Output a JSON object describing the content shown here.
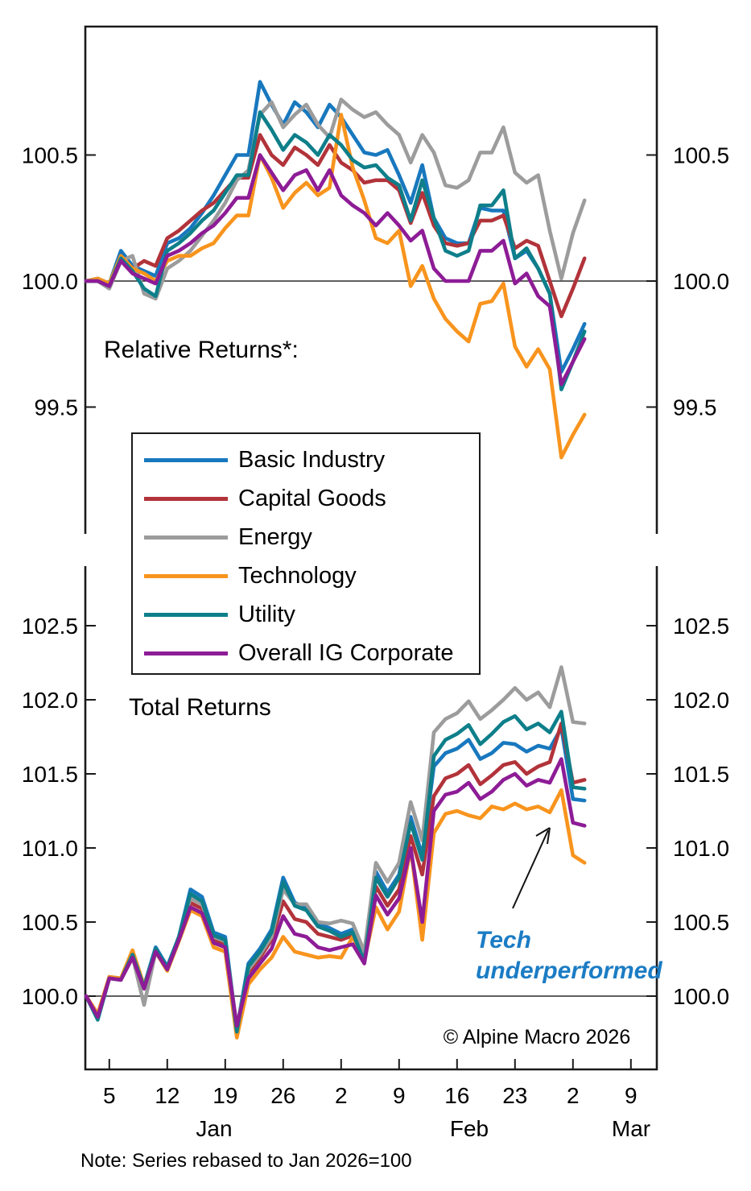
{
  "labels": {
    "relative_returns": "Relative Returns*:",
    "total_returns": "Total Returns",
    "copyright": "© Alpine Macro 2026",
    "note": "Note: Series rebased to Jan 2026=100"
  },
  "annotation": {
    "line1": "Tech",
    "line2": "underperformed",
    "color": "#1b7cc4"
  },
  "legend": {
    "items": [
      {
        "label": "Basic Industry",
        "color": "#1878be"
      },
      {
        "label": "Capital Goods",
        "color": "#b2333a"
      },
      {
        "label": "Energy",
        "color": "#9c9c9c"
      },
      {
        "label": "Technology",
        "color": "#f8941d"
      },
      {
        "label": "Utility",
        "color": "#0e7f8a"
      },
      {
        "label": "Overall IG Corporate",
        "color": "#8d1c96"
      }
    ]
  },
  "x_axis": {
    "tick_labels": [
      "5",
      "12",
      "19",
      "26",
      "2",
      "9",
      "16",
      "23",
      "2",
      "9"
    ],
    "month_labels": [
      "Jan",
      "Feb",
      "Mar"
    ]
  },
  "chart_data": [
    {
      "type": "line",
      "panel": "top",
      "title": "Relative Returns*:",
      "ylim": [
        99.0,
        101.0
      ],
      "yticks": [
        100.5,
        100.0,
        99.5
      ],
      "ytick_labels": [
        "100.5",
        "100.0",
        "99.5"
      ],
      "baseline": 100.0,
      "grid": false,
      "x": [
        "Jan 1",
        "Jan 2",
        "Jan 5",
        "Jan 6",
        "Jan 7",
        "Jan 8",
        "Jan 9",
        "Jan 12",
        "Jan 13",
        "Jan 14",
        "Jan 15",
        "Jan 16",
        "Jan 19",
        "Jan 20",
        "Jan 21",
        "Jan 22",
        "Jan 23",
        "Jan 26",
        "Jan 27",
        "Jan 28",
        "Jan 29",
        "Jan 30",
        "Feb 2",
        "Feb 3",
        "Feb 4",
        "Feb 5",
        "Feb 6",
        "Feb 9",
        "Feb 10",
        "Feb 11",
        "Feb 12",
        "Feb 13",
        "Feb 16",
        "Feb 17",
        "Feb 18",
        "Feb 19",
        "Feb 20",
        "Feb 23",
        "Feb 24",
        "Feb 25",
        "Feb 26",
        "Feb 27",
        "Mar 2",
        "Mar 3"
      ],
      "series": [
        {
          "name": "Basic Industry",
          "color": "#1878be",
          "values": [
            100.0,
            100.01,
            99.99,
            100.12,
            100.06,
            100.04,
            100.02,
            100.15,
            100.17,
            100.21,
            100.27,
            100.34,
            100.42,
            100.5,
            100.5,
            100.79,
            100.7,
            100.62,
            100.71,
            100.67,
            100.61,
            100.7,
            100.65,
            100.58,
            100.51,
            100.5,
            100.52,
            100.42,
            100.31,
            100.46,
            100.25,
            100.17,
            100.15,
            100.15,
            100.29,
            100.28,
            100.28,
            100.09,
            100.12,
            100.05,
            99.95,
            99.64,
            99.73,
            99.83
          ]
        },
        {
          "name": "Capital Goods",
          "color": "#b2333a",
          "values": [
            100.0,
            100.0,
            99.98,
            100.1,
            100.05,
            100.08,
            100.06,
            100.17,
            100.2,
            100.24,
            100.28,
            100.31,
            100.36,
            100.41,
            100.41,
            100.58,
            100.5,
            100.46,
            100.53,
            100.5,
            100.46,
            100.54,
            100.47,
            100.44,
            100.39,
            100.4,
            100.4,
            100.36,
            100.23,
            100.35,
            100.22,
            100.15,
            100.14,
            100.15,
            100.24,
            100.24,
            100.26,
            100.13,
            100.16,
            100.14,
            100.0,
            99.86,
            99.97,
            100.09
          ]
        },
        {
          "name": "Energy",
          "color": "#9c9c9c",
          "values": [
            100.0,
            100.0,
            99.97,
            100.08,
            100.1,
            99.95,
            99.93,
            100.05,
            100.08,
            100.12,
            100.18,
            100.24,
            100.31,
            100.4,
            100.44,
            100.66,
            100.71,
            100.61,
            100.66,
            100.7,
            100.62,
            100.57,
            100.72,
            100.68,
            100.65,
            100.67,
            100.62,
            100.58,
            100.47,
            100.58,
            100.51,
            100.38,
            100.37,
            100.4,
            100.51,
            100.51,
            100.61,
            100.43,
            100.39,
            100.42,
            100.2,
            100.01,
            100.19,
            100.32
          ]
        },
        {
          "name": "Technology",
          "color": "#f8941d",
          "values": [
            100.0,
            100.01,
            99.99,
            100.1,
            100.05,
            100.03,
            100.0,
            100.08,
            100.1,
            100.1,
            100.13,
            100.15,
            100.21,
            100.26,
            100.26,
            100.5,
            100.41,
            100.29,
            100.35,
            100.39,
            100.34,
            100.37,
            100.66,
            100.45,
            100.32,
            100.17,
            100.15,
            100.2,
            99.98,
            100.06,
            99.93,
            99.85,
            99.8,
            99.76,
            99.91,
            99.92,
            99.99,
            99.74,
            99.66,
            99.73,
            99.65,
            99.3,
            99.39,
            99.47
          ]
        },
        {
          "name": "Utility",
          "color": "#0e7f8a",
          "values": [
            100.0,
            100.0,
            99.98,
            100.09,
            100.04,
            99.97,
            99.94,
            100.12,
            100.15,
            100.19,
            100.24,
            100.28,
            100.35,
            100.42,
            100.42,
            100.67,
            100.6,
            100.52,
            100.58,
            100.55,
            100.5,
            100.58,
            100.54,
            100.48,
            100.45,
            100.46,
            100.41,
            100.38,
            100.24,
            100.4,
            100.25,
            100.12,
            100.1,
            100.12,
            100.3,
            100.3,
            100.36,
            100.09,
            100.13,
            100.05,
            99.95,
            99.57,
            99.68,
            99.8
          ]
        },
        {
          "name": "Overall IG Corporate",
          "color": "#8d1c96",
          "values": [
            100.0,
            100.0,
            99.98,
            100.08,
            100.03,
            100.01,
            99.99,
            100.1,
            100.12,
            100.15,
            100.19,
            100.22,
            100.27,
            100.33,
            100.33,
            100.5,
            100.43,
            100.36,
            100.42,
            100.44,
            100.36,
            100.44,
            100.34,
            100.3,
            100.27,
            100.22,
            100.27,
            100.22,
            100.16,
            100.2,
            100.05,
            100.0,
            100.0,
            100.0,
            100.12,
            100.12,
            100.16,
            99.99,
            100.03,
            99.94,
            99.9,
            99.59,
            99.68,
            99.77
          ]
        }
      ]
    },
    {
      "type": "line",
      "panel": "bottom",
      "title": "Total Returns",
      "ylim": [
        99.5,
        102.9
      ],
      "yticks": [
        102.5,
        102.0,
        101.5,
        101.0,
        100.5,
        100.0
      ],
      "ytick_labels": [
        "102.5",
        "102.0",
        "101.5",
        "101.0",
        "100.5",
        "100.0"
      ],
      "baseline": 100.0,
      "grid": false,
      "x": [
        "Jan 1",
        "Jan 2",
        "Jan 5",
        "Jan 6",
        "Jan 7",
        "Jan 8",
        "Jan 9",
        "Jan 12",
        "Jan 13",
        "Jan 14",
        "Jan 15",
        "Jan 16",
        "Jan 19",
        "Jan 20",
        "Jan 21",
        "Jan 22",
        "Jan 23",
        "Jan 26",
        "Jan 27",
        "Jan 28",
        "Jan 29",
        "Jan 30",
        "Feb 2",
        "Feb 3",
        "Feb 4",
        "Feb 5",
        "Feb 6",
        "Feb 9",
        "Feb 10",
        "Feb 11",
        "Feb 12",
        "Feb 13",
        "Feb 16",
        "Feb 17",
        "Feb 18",
        "Feb 19",
        "Feb 20",
        "Feb 23",
        "Feb 24",
        "Feb 25",
        "Feb 26",
        "Feb 27",
        "Mar 2",
        "Mar 3"
      ],
      "series": [
        {
          "name": "Basic Industry",
          "color": "#1878be",
          "values": [
            100.0,
            99.87,
            100.13,
            100.12,
            100.29,
            100.07,
            100.33,
            100.2,
            100.4,
            100.72,
            100.67,
            100.43,
            100.4,
            99.78,
            100.22,
            100.32,
            100.45,
            100.8,
            100.63,
            100.6,
            100.49,
            100.46,
            100.42,
            100.45,
            100.24,
            100.84,
            100.7,
            100.82,
            101.21,
            100.95,
            101.55,
            101.64,
            101.67,
            101.73,
            101.6,
            101.64,
            101.71,
            101.7,
            101.65,
            101.69,
            101.67,
            101.81,
            101.33,
            101.32
          ]
        },
        {
          "name": "Capital Goods",
          "color": "#b2333a",
          "values": [
            100.0,
            99.87,
            100.12,
            100.11,
            100.27,
            100.06,
            100.31,
            100.19,
            100.39,
            100.63,
            100.59,
            100.38,
            100.35,
            99.78,
            100.16,
            100.26,
            100.38,
            100.64,
            100.52,
            100.5,
            100.42,
            100.4,
            100.38,
            100.41,
            100.23,
            100.74,
            100.61,
            100.72,
            101.08,
            100.82,
            101.35,
            101.47,
            101.5,
            101.56,
            101.43,
            101.49,
            101.56,
            101.58,
            101.5,
            101.55,
            101.58,
            101.84,
            101.44,
            101.46
          ]
        },
        {
          "name": "Energy",
          "color": "#9c9c9c",
          "values": [
            100.0,
            99.88,
            100.12,
            100.11,
            100.27,
            99.94,
            100.3,
            100.18,
            100.4,
            100.66,
            100.62,
            100.4,
            100.37,
            99.79,
            100.18,
            100.28,
            100.4,
            100.72,
            100.62,
            100.62,
            100.5,
            100.49,
            100.51,
            100.49,
            100.3,
            100.9,
            100.77,
            100.9,
            101.31,
            101.05,
            101.78,
            101.87,
            101.91,
            101.99,
            101.87,
            101.93,
            102.0,
            102.08,
            102.0,
            102.05,
            101.95,
            102.22,
            101.85,
            101.84
          ]
        },
        {
          "name": "Technology",
          "color": "#f8941d",
          "values": [
            100.0,
            99.88,
            100.13,
            100.12,
            100.31,
            100.07,
            100.3,
            100.17,
            100.37,
            100.58,
            100.54,
            100.33,
            100.3,
            99.72,
            100.08,
            100.18,
            100.26,
            100.4,
            100.3,
            100.28,
            100.26,
            100.27,
            100.26,
            100.4,
            100.24,
            100.6,
            100.45,
            100.57,
            101.0,
            100.38,
            101.1,
            101.23,
            101.25,
            101.22,
            101.2,
            101.28,
            101.26,
            101.3,
            101.26,
            101.28,
            101.24,
            101.39,
            100.95,
            100.9
          ]
        },
        {
          "name": "Utility",
          "color": "#0e7f8a",
          "values": [
            100.0,
            99.84,
            100.12,
            100.11,
            100.28,
            100.06,
            100.32,
            100.19,
            100.4,
            100.69,
            100.64,
            100.41,
            100.38,
            99.76,
            100.2,
            100.3,
            100.43,
            100.77,
            100.61,
            100.58,
            100.47,
            100.44,
            100.4,
            100.43,
            100.23,
            100.8,
            100.67,
            100.8,
            101.17,
            100.92,
            101.62,
            101.73,
            101.77,
            101.83,
            101.7,
            101.77,
            101.85,
            101.89,
            101.8,
            101.84,
            101.78,
            101.92,
            101.41,
            101.4
          ]
        },
        {
          "name": "Overall IG Corporate",
          "color": "#8d1c96",
          "values": [
            100.0,
            99.86,
            100.12,
            100.11,
            100.26,
            100.05,
            100.3,
            100.18,
            100.38,
            100.6,
            100.56,
            100.36,
            100.33,
            99.8,
            100.12,
            100.22,
            100.32,
            100.54,
            100.42,
            100.4,
            100.33,
            100.31,
            100.33,
            100.35,
            100.22,
            100.68,
            100.55,
            100.66,
            101.0,
            100.5,
            101.25,
            101.36,
            101.38,
            101.44,
            101.33,
            101.38,
            101.46,
            101.5,
            101.42,
            101.46,
            101.44,
            101.6,
            101.17,
            101.15
          ]
        }
      ]
    }
  ]
}
